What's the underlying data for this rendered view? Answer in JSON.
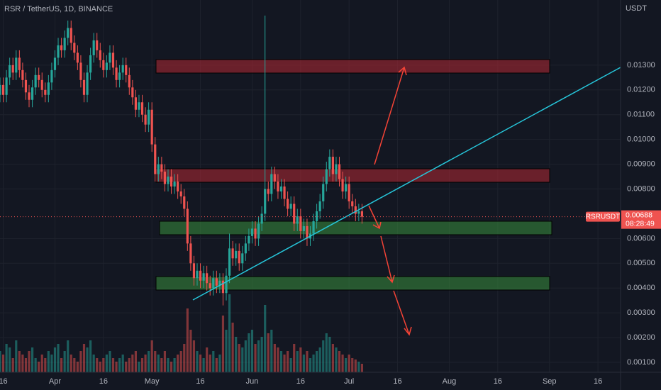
{
  "chart_data": {
    "type": "candlestick",
    "title": "RSR / TetherUS, 1D, BINANCE",
    "y_unit": "USDT",
    "symbol": "RSRUSDT",
    "last_price": 0.00688,
    "countdown": "08:28:49",
    "up_color": "#26a69a",
    "down_color": "#ef5350",
    "x": [
      0,
      1,
      2,
      3,
      4,
      5,
      6,
      7,
      8,
      9,
      10,
      11,
      12,
      13,
      14,
      15,
      16,
      17,
      18,
      19,
      20,
      21,
      22,
      23,
      24,
      25,
      26,
      27,
      28,
      29,
      30,
      31,
      32,
      33,
      34,
      35,
      36,
      37,
      38,
      39,
      40,
      41,
      42,
      43,
      44,
      45,
      46,
      47,
      48,
      49,
      50,
      51,
      52,
      53,
      54,
      55,
      56,
      57,
      58,
      59,
      60,
      61,
      62,
      63,
      64,
      65,
      66,
      67,
      68,
      69,
      70,
      71,
      72,
      73,
      74,
      75,
      76,
      77,
      78,
      79,
      80,
      81,
      82,
      83,
      84,
      85,
      86,
      87,
      88,
      89,
      90,
      91,
      92,
      93,
      94,
      95,
      96,
      97,
      98,
      99,
      100,
      101,
      102,
      103,
      104,
      105,
      106,
      107,
      108,
      109,
      110,
      111,
      112
    ],
    "open": [
      0.0118,
      0.0122,
      0.0118,
      0.0125,
      0.013,
      0.0127,
      0.0133,
      0.0128,
      0.0124,
      0.0119,
      0.0116,
      0.0121,
      0.0126,
      0.0124,
      0.012,
      0.0118,
      0.0123,
      0.0128,
      0.0133,
      0.0138,
      0.0136,
      0.0141,
      0.0145,
      0.0139,
      0.0135,
      0.0131,
      0.0124,
      0.0118,
      0.0127,
      0.0134,
      0.014,
      0.0136,
      0.0132,
      0.0128,
      0.0131,
      0.0135,
      0.0129,
      0.0124,
      0.0127,
      0.013,
      0.0126,
      0.0121,
      0.0117,
      0.0112,
      0.0115,
      0.011,
      0.0106,
      0.0112,
      0.0098,
      0.0086,
      0.009,
      0.0087,
      0.0082,
      0.0085,
      0.0081,
      0.0083,
      0.0079,
      0.0077,
      0.0072,
      0.0058,
      0.005,
      0.0044,
      0.0047,
      0.0043,
      0.0046,
      0.0042,
      0.004,
      0.0044,
      0.0041,
      0.0043,
      0.0038,
      0.0045,
      0.0056,
      0.0052,
      0.0055,
      0.005,
      0.0054,
      0.0058,
      0.0061,
      0.0064,
      0.006,
      0.0066,
      0.007,
      0.008,
      0.0078,
      0.0086,
      0.0083,
      0.0079,
      0.0081,
      0.0076,
      0.0072,
      0.0074,
      0.0066,
      0.0069,
      0.0063,
      0.0065,
      0.006,
      0.0062,
      0.0067,
      0.0071,
      0.0075,
      0.0082,
      0.0088,
      0.0093,
      0.0086,
      0.009,
      0.0084,
      0.0079,
      0.0082,
      0.0075,
      0.0073,
      0.007,
      0.0071
    ],
    "high": [
      0.0125,
      0.0125,
      0.0128,
      0.0133,
      0.0133,
      0.0136,
      0.0136,
      0.0131,
      0.0127,
      0.0122,
      0.0124,
      0.0129,
      0.0129,
      0.0127,
      0.0123,
      0.0126,
      0.0131,
      0.0136,
      0.0141,
      0.0141,
      0.0144,
      0.0148,
      0.0148,
      0.0142,
      0.0138,
      0.0134,
      0.0127,
      0.013,
      0.0137,
      0.0143,
      0.0143,
      0.0139,
      0.0135,
      0.0134,
      0.0138,
      0.0138,
      0.0132,
      0.013,
      0.0133,
      0.0133,
      0.0129,
      0.0124,
      0.012,
      0.0118,
      0.0118,
      0.0113,
      0.0115,
      0.0115,
      0.0101,
      0.0093,
      0.0093,
      0.009,
      0.0088,
      0.0088,
      0.0086,
      0.0086,
      0.0082,
      0.008,
      0.0075,
      0.0061,
      0.0053,
      0.005,
      0.005,
      0.0049,
      0.0049,
      0.0045,
      0.0047,
      0.0047,
      0.0046,
      0.0046,
      0.0048,
      0.0062,
      0.0059,
      0.0058,
      0.0058,
      0.0057,
      0.0061,
      0.0064,
      0.0067,
      0.0067,
      0.0069,
      0.0073,
      0.015,
      0.0083,
      0.0089,
      0.0089,
      0.0086,
      0.0084,
      0.0084,
      0.0079,
      0.0077,
      0.0077,
      0.0072,
      0.0072,
      0.0068,
      0.0068,
      0.0065,
      0.007,
      0.0074,
      0.0078,
      0.0085,
      0.0091,
      0.0096,
      0.0096,
      0.0093,
      0.0093,
      0.0087,
      0.0085,
      0.0085,
      0.0078,
      0.0076,
      0.0074,
      0.0074
    ],
    "low": [
      0.0115,
      0.0115,
      0.0115,
      0.0122,
      0.0124,
      0.0124,
      0.0125,
      0.0121,
      0.0116,
      0.0113,
      0.0113,
      0.0118,
      0.0121,
      0.0117,
      0.0115,
      0.0115,
      0.012,
      0.0125,
      0.013,
      0.0133,
      0.0133,
      0.0138,
      0.0136,
      0.0132,
      0.0128,
      0.0121,
      0.0115,
      0.0115,
      0.0124,
      0.0131,
      0.0133,
      0.0129,
      0.0125,
      0.0125,
      0.0128,
      0.0126,
      0.0121,
      0.0121,
      0.0124,
      0.0123,
      0.0118,
      0.0114,
      0.0109,
      0.0109,
      0.0107,
      0.0103,
      0.0103,
      0.0095,
      0.0083,
      0.0083,
      0.0084,
      0.0079,
      0.0079,
      0.0078,
      0.0078,
      0.0076,
      0.0074,
      0.0069,
      0.0055,
      0.0047,
      0.0041,
      0.0041,
      0.004,
      0.004,
      0.0039,
      0.0037,
      0.0037,
      0.0038,
      0.0038,
      0.0033,
      0.0035,
      0.0042,
      0.0049,
      0.0049,
      0.0047,
      0.0047,
      0.0051,
      0.0055,
      0.0058,
      0.0057,
      0.0057,
      0.0063,
      0.0067,
      0.0075,
      0.0075,
      0.008,
      0.0076,
      0.0076,
      0.0073,
      0.0069,
      0.0069,
      0.0063,
      0.0063,
      0.006,
      0.006,
      0.0057,
      0.0057,
      0.0059,
      0.0064,
      0.0068,
      0.0072,
      0.0079,
      0.0085,
      0.0083,
      0.0083,
      0.0081,
      0.0076,
      0.0076,
      0.0072,
      0.007,
      0.0067,
      0.0067,
      0.0066
    ],
    "close": [
      0.0122,
      0.0118,
      0.0125,
      0.013,
      0.0127,
      0.0133,
      0.0128,
      0.0124,
      0.0119,
      0.0116,
      0.0121,
      0.0126,
      0.0124,
      0.012,
      0.0118,
      0.0123,
      0.0128,
      0.0133,
      0.0138,
      0.0136,
      0.0141,
      0.0145,
      0.0139,
      0.0135,
      0.0131,
      0.0124,
      0.0118,
      0.0127,
      0.0134,
      0.014,
      0.0136,
      0.0132,
      0.0128,
      0.0131,
      0.0135,
      0.0129,
      0.0124,
      0.0127,
      0.013,
      0.0126,
      0.0121,
      0.0117,
      0.0112,
      0.0115,
      0.011,
      0.0106,
      0.0112,
      0.0098,
      0.0086,
      0.009,
      0.0087,
      0.0082,
      0.0085,
      0.0081,
      0.0083,
      0.0079,
      0.0077,
      0.0072,
      0.0058,
      0.005,
      0.0044,
      0.0047,
      0.0043,
      0.0046,
      0.0042,
      0.004,
      0.0044,
      0.0041,
      0.0043,
      0.0038,
      0.0045,
      0.0056,
      0.0052,
      0.0055,
      0.005,
      0.0054,
      0.0058,
      0.0061,
      0.0064,
      0.006,
      0.0066,
      0.007,
      0.008,
      0.0078,
      0.0086,
      0.0083,
      0.0079,
      0.0081,
      0.0076,
      0.0072,
      0.0074,
      0.0066,
      0.0069,
      0.0063,
      0.0065,
      0.006,
      0.0062,
      0.0067,
      0.0071,
      0.0075,
      0.0082,
      0.0088,
      0.0093,
      0.0086,
      0.009,
      0.0084,
      0.0079,
      0.0082,
      0.0075,
      0.0073,
      0.007,
      0.0071,
      0.00688
    ],
    "volume": [
      30,
      25,
      40,
      35,
      20,
      45,
      30,
      25,
      20,
      30,
      35,
      20,
      15,
      25,
      20,
      30,
      25,
      35,
      40,
      20,
      30,
      45,
      25,
      20,
      15,
      30,
      40,
      35,
      45,
      25,
      20,
      15,
      20,
      25,
      30,
      20,
      15,
      20,
      25,
      15,
      20,
      25,
      30,
      15,
      20,
      25,
      30,
      45,
      30,
      25,
      20,
      30,
      20,
      15,
      20,
      25,
      30,
      40,
      90,
      60,
      45,
      30,
      25,
      20,
      35,
      25,
      30,
      20,
      25,
      80,
      60,
      110,
      70,
      50,
      40,
      35,
      45,
      55,
      60,
      40,
      45,
      50,
      95,
      55,
      60,
      40,
      35,
      30,
      25,
      30,
      20,
      40,
      30,
      35,
      25,
      30,
      20,
      25,
      30,
      35,
      45,
      55,
      50,
      40,
      35,
      30,
      25,
      20,
      25,
      20,
      18,
      15,
      12
    ],
    "xlim": [
      0,
      192
    ],
    "xticks": [
      {
        "value": 1,
        "label": "16"
      },
      {
        "value": 17,
        "label": "Apr"
      },
      {
        "value": 32,
        "label": "16"
      },
      {
        "value": 47,
        "label": "May"
      },
      {
        "value": 62,
        "label": "16"
      },
      {
        "value": 78,
        "label": "Jun"
      },
      {
        "value": 93,
        "label": "16"
      },
      {
        "value": 108,
        "label": "Jul"
      },
      {
        "value": 123,
        "label": "16"
      },
      {
        "value": 139,
        "label": "Aug"
      },
      {
        "value": 154,
        "label": "16"
      },
      {
        "value": 170,
        "label": "Sep"
      },
      {
        "value": 185,
        "label": "16"
      }
    ],
    "ylim": [
      0.0006,
      0.01563
    ],
    "yticks": [
      {
        "value": 0.001,
        "label": "0.00100"
      },
      {
        "value": 0.002,
        "label": "0.00200"
      },
      {
        "value": 0.003,
        "label": "0.00300"
      },
      {
        "value": 0.004,
        "label": "0.00400"
      },
      {
        "value": 0.005,
        "label": "0.00500"
      },
      {
        "value": 0.006,
        "label": "0.00600"
      },
      {
        "value": 0.008,
        "label": "0.00800"
      },
      {
        "value": 0.009,
        "label": "0.00900"
      },
      {
        "value": 0.01,
        "label": "0.01000"
      },
      {
        "value": 0.011,
        "label": "0.01100"
      },
      {
        "value": 0.012,
        "label": "0.01200"
      },
      {
        "value": 0.013,
        "label": "0.01300"
      }
    ],
    "grid": true
  }
}
